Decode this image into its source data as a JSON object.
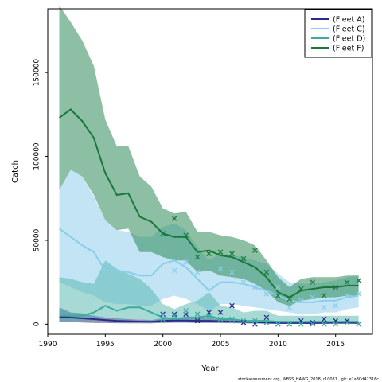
{
  "chart_data": {
    "type": "line",
    "xlabel": "Year",
    "ylabel": "Catch",
    "xlim": [
      1990,
      2018.2
    ],
    "ylim": [
      -6000,
      188000
    ],
    "x_ticks": [
      1990,
      1995,
      2000,
      2005,
      2010,
      2015
    ],
    "y_ticks": [
      0,
      50000,
      100000,
      150000
    ],
    "y_tick_labels": [
      "0",
      "50000",
      "100000",
      "150000"
    ],
    "legend_position": "top-right",
    "footer": "stockassessment.org, WBSS_HAWG_2018, r10081 , git: e2a30d42316c",
    "series": [
      {
        "name": "(Fleet A)",
        "color": "#2a2a8c",
        "fill": "#303a7a",
        "fill_opacity": 0.55,
        "years": [
          1991,
          1992,
          1993,
          1994,
          1995,
          1996,
          1997,
          1998,
          1999,
          2000,
          2001,
          2002,
          2003,
          2004,
          2005,
          2006,
          2007,
          2008,
          2009,
          2010,
          2011,
          2012,
          2013,
          2014,
          2015,
          2016,
          2017
        ],
        "fit": [
          4500,
          4000,
          3500,
          3000,
          2500,
          2000,
          1800,
          1600,
          1500,
          2000,
          2200,
          2200,
          2000,
          2000,
          1800,
          1600,
          1400,
          1200,
          1000,
          800,
          700,
          700,
          700,
          800,
          900,
          900,
          800
        ],
        "lower": [
          1500,
          1200,
          1000,
          800,
          700,
          600,
          500,
          500,
          500,
          800,
          900,
          900,
          800,
          800,
          700,
          600,
          500,
          400,
          300,
          200,
          200,
          200,
          200,
          300,
          300,
          300,
          300
        ],
        "upper": [
          10000,
          7000,
          6500,
          5000,
          4000,
          3500,
          3000,
          2800,
          2500,
          3500,
          4000,
          4000,
          3500,
          3500,
          3200,
          3000,
          2500,
          2000,
          1800,
          1500,
          1300,
          1300,
          1300,
          1500,
          1700,
          1700,
          1500
        ],
        "obs_years": [
          2000,
          2001,
          2002,
          2003,
          2004,
          2005,
          2006,
          2007,
          2008,
          2009,
          2010,
          2011,
          2012,
          2013,
          2014,
          2015,
          2016,
          2017
        ],
        "obs": [
          6000,
          6000,
          6000,
          2000,
          7000,
          7000,
          11000,
          1000,
          0,
          4000,
          0,
          0,
          2000,
          1000,
          3000,
          2000,
          2000,
          0
        ]
      },
      {
        "name": "(Fleet C)",
        "color": "#87ceeb",
        "fill": "#a8d8f0",
        "fill_opacity": 0.7,
        "years": [
          1991,
          1992,
          1993,
          1994,
          1995,
          1996,
          1997,
          1998,
          1999,
          2000,
          2001,
          2002,
          2003,
          2004,
          2005,
          2006,
          2007,
          2008,
          2009,
          2010,
          2011,
          2012,
          2013,
          2014,
          2015,
          2016,
          2017
        ],
        "fit": [
          57000,
          52000,
          47000,
          43000,
          32000,
          32000,
          31000,
          29000,
          29000,
          36000,
          38000,
          34000,
          27000,
          20000,
          25000,
          25000,
          24000,
          22000,
          20000,
          17000,
          14000,
          13000,
          13000,
          14000,
          14000,
          16000,
          17000
        ],
        "lower": [
          25000,
          22000,
          19000,
          17000,
          13000,
          12000,
          12000,
          11000,
          11000,
          15000,
          17000,
          15000,
          12000,
          8000,
          12000,
          12000,
          11000,
          10000,
          9000,
          8000,
          7000,
          6000,
          6000,
          7000,
          7000,
          9000,
          10000
        ],
        "upper": [
          80000,
          92000,
          88000,
          76000,
          62000,
          56000,
          55000,
          52000,
          52000,
          58000,
          60000,
          56000,
          46000,
          38000,
          42000,
          41000,
          40000,
          38000,
          36000,
          30000,
          25000,
          24000,
          24000,
          25000,
          26000,
          28000,
          29000
        ],
        "obs_years": [
          2000,
          2001,
          2002,
          2003,
          2004,
          2005,
          2006,
          2007,
          2008,
          2009,
          2010,
          2011,
          2012,
          2013,
          2014,
          2015,
          2016,
          2017
        ],
        "obs": [
          5000,
          32000,
          37000,
          31000,
          10000,
          33000,
          31000,
          25000,
          22000,
          18000,
          22000,
          10000,
          14000,
          16000,
          10000,
          11000,
          17000,
          18000
        ]
      },
      {
        "name": "(Fleet D)",
        "color": "#3aaca0",
        "fill": "#4fb5ab",
        "fill_opacity": 0.5,
        "years": [
          1991,
          1992,
          1993,
          1994,
          1995,
          1996,
          1997,
          1998,
          1999,
          2000,
          2001,
          2002,
          2003,
          2004,
          2005,
          2006,
          2007,
          2008,
          2009,
          2010,
          2011,
          2012,
          2013,
          2014,
          2015,
          2016,
          2017
        ],
        "fit": [
          5000,
          5000,
          5000,
          7000,
          11000,
          8000,
          10000,
          10000,
          7000,
          4000,
          3000,
          4000,
          4000,
          5000,
          3000,
          3000,
          2000,
          2000,
          2000,
          1500,
          1500,
          1500,
          1500,
          1500,
          1500,
          1500,
          1500
        ],
        "lower": [
          2000,
          2000,
          2000,
          3000,
          4000,
          3000,
          3000,
          3000,
          2000,
          1000,
          1000,
          1000,
          1000,
          1500,
          1000,
          1000,
          500,
          500,
          500,
          400,
          400,
          400,
          400,
          400,
          400,
          400,
          400
        ],
        "upper": [
          28000,
          27000,
          25000,
          24000,
          38000,
          33000,
          30000,
          27000,
          21000,
          12000,
          9000,
          12000,
          14000,
          19000,
          11000,
          10000,
          7000,
          8000,
          8000,
          5000,
          5000,
          5000,
          5000,
          5000,
          5000,
          5000,
          5000
        ],
        "obs_years": [
          2000,
          2001,
          2002,
          2003,
          2004,
          2005,
          2006,
          2007,
          2008,
          2009,
          2010,
          2011,
          2012,
          2013,
          2014,
          2015,
          2016,
          2017
        ],
        "obs": [
          3000,
          5000,
          8000,
          6000,
          5000,
          3000,
          3000,
          2000,
          2000,
          1000,
          0,
          0,
          0,
          0,
          0,
          0,
          1000,
          0
        ]
      },
      {
        "name": "(Fleet F)",
        "color": "#18783a",
        "fill": "#2e8b57",
        "fill_opacity": 0.55,
        "years": [
          1991,
          1992,
          1993,
          1994,
          1995,
          1996,
          1997,
          1998,
          1999,
          2000,
          2001,
          2002,
          2003,
          2004,
          2005,
          2006,
          2007,
          2008,
          2009,
          2010,
          2011,
          2012,
          2013,
          2014,
          2015,
          2016,
          2017
        ],
        "fit": [
          123000,
          128000,
          121000,
          111000,
          90000,
          77000,
          78000,
          64000,
          61000,
          54000,
          52000,
          52000,
          43000,
          44000,
          41000,
          40000,
          37000,
          34000,
          28000,
          19000,
          16000,
          20000,
          21000,
          22000,
          22000,
          23000,
          23000
        ],
        "lower": [
          80000,
          92000,
          88000,
          77000,
          62000,
          56000,
          57000,
          43000,
          43000,
          40000,
          38000,
          38000,
          31000,
          32000,
          29000,
          28000,
          27000,
          24000,
          20000,
          13000,
          11000,
          14000,
          15000,
          16000,
          16000,
          17000,
          17000
        ],
        "upper": [
          190000,
          180000,
          169000,
          154000,
          122000,
          106000,
          106000,
          88000,
          82000,
          69000,
          66000,
          67000,
          55000,
          55000,
          53000,
          52000,
          50000,
          47000,
          38000,
          28000,
          22000,
          27000,
          28000,
          28000,
          28000,
          29000,
          29000
        ],
        "obs_years": [
          2000,
          2001,
          2002,
          2003,
          2004,
          2005,
          2006,
          2007,
          2008,
          2009,
          2010,
          2011,
          2012,
          2013,
          2014,
          2015,
          2016,
          2017
        ],
        "obs": [
          54000,
          63000,
          53000,
          40000,
          42000,
          43000,
          42000,
          39000,
          44000,
          31000,
          17000,
          15000,
          21000,
          25000,
          17000,
          22000,
          25000,
          26000
        ]
      }
    ]
  }
}
